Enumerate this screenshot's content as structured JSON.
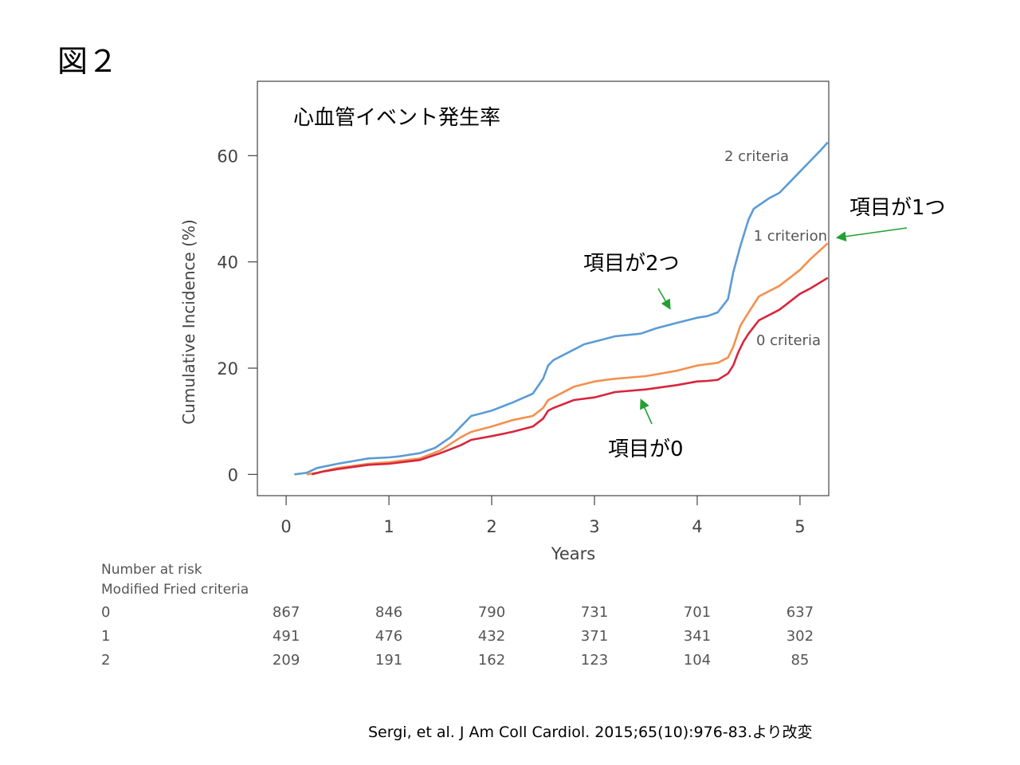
{
  "figure_label": "図２",
  "chart_data": {
    "type": "line",
    "title": "心血管イベント発生率",
    "xlabel": "Years",
    "ylabel": "Cumulative Incidence (%)",
    "xlim": [
      -0.28,
      5.28
    ],
    "ylim": [
      -4,
      74
    ],
    "xticks": [
      0,
      1,
      2,
      3,
      4,
      5
    ],
    "yticks": [
      0,
      20,
      40,
      60
    ],
    "grid": false,
    "legend": "inline-labels-right",
    "series": [
      {
        "name": "2 criteria",
        "color": "#5b9bd5",
        "x": [
          0.08,
          0.2,
          0.3,
          0.5,
          0.8,
          1.0,
          1.1,
          1.3,
          1.45,
          1.6,
          1.7,
          1.8,
          1.9,
          2.0,
          2.2,
          2.4,
          2.5,
          2.55,
          2.6,
          2.7,
          2.8,
          2.9,
          3.0,
          3.2,
          3.45,
          3.6,
          3.8,
          3.9,
          4.0,
          4.1,
          4.2,
          4.3,
          4.35,
          4.42,
          4.5,
          4.55,
          4.7,
          4.8,
          4.9,
          5.0,
          5.1,
          5.2,
          5.27
        ],
        "y": [
          0,
          0.3,
          1.2,
          2,
          3,
          3.2,
          3.4,
          4,
          5,
          7,
          9,
          11,
          11.5,
          12,
          13.5,
          15.2,
          18,
          20.5,
          21.5,
          22.5,
          23.5,
          24.5,
          25,
          26,
          26.5,
          27.5,
          28.5,
          29,
          29.5,
          29.8,
          30.5,
          33,
          38,
          43,
          48,
          50,
          52,
          53,
          55,
          57,
          59,
          61,
          62.5
        ]
      },
      {
        "name": "1 criterion",
        "color": "#f4904d",
        "x": [
          0.2,
          0.3,
          0.5,
          0.8,
          1.0,
          1.3,
          1.5,
          1.7,
          1.8,
          2.0,
          2.2,
          2.4,
          2.5,
          2.55,
          2.6,
          2.8,
          3.0,
          3.2,
          3.5,
          3.8,
          4.0,
          4.2,
          4.3,
          4.35,
          4.42,
          4.5,
          4.6,
          4.8,
          4.9,
          5.0,
          5.1,
          5.27
        ],
        "y": [
          0,
          0.3,
          1.2,
          2,
          2.3,
          3,
          4.5,
          7,
          8,
          9,
          10.2,
          11,
          12.5,
          14,
          14.5,
          16.5,
          17.5,
          18,
          18.5,
          19.5,
          20.5,
          21,
          22,
          24,
          28,
          30.5,
          33.5,
          35.5,
          37,
          38.5,
          40.5,
          43.5
        ]
      },
      {
        "name": "0 criteria",
        "color": "#d7263d",
        "x": [
          0.25,
          0.35,
          0.5,
          0.8,
          1.0,
          1.3,
          1.5,
          1.7,
          1.8,
          2.0,
          2.2,
          2.4,
          2.5,
          2.55,
          2.6,
          2.8,
          3.0,
          3.2,
          3.5,
          3.8,
          4.0,
          4.1,
          4.2,
          4.3,
          4.35,
          4.4,
          4.45,
          4.5,
          4.6,
          4.8,
          4.9,
          5.0,
          5.1,
          5.27
        ],
        "y": [
          0,
          0.5,
          1,
          1.8,
          2,
          2.7,
          4,
          5.5,
          6.5,
          7.2,
          8,
          9,
          10.5,
          12,
          12.5,
          14,
          14.5,
          15.5,
          16,
          16.8,
          17.5,
          17.6,
          17.8,
          19,
          20.5,
          23,
          25,
          26.5,
          29,
          31,
          32.5,
          34,
          35,
          37
        ]
      }
    ],
    "risk_table": {
      "heading": "Number at risk",
      "subheading": "Modified Fried criteria",
      "x": [
        0,
        1,
        2,
        3,
        4,
        5
      ],
      "rows": [
        {
          "label": "0",
          "values": [
            "867",
            "846",
            "790",
            "731",
            "701",
            "637"
          ]
        },
        {
          "label": "1",
          "values": [
            "491",
            "476",
            "432",
            "371",
            "341",
            "302"
          ]
        },
        {
          "label": "2",
          "values": [
            "209",
            "191",
            "162",
            "123",
            "104",
            "85"
          ]
        }
      ]
    }
  },
  "callouts": {
    "one": "項目が1つ",
    "two": "項目が2つ",
    "zero": "項目が0",
    "arrow_color": "#22a032"
  },
  "citation": "Sergi, et al. J Am Coll Cardiol. 2015;65(10):976-83.より改変"
}
